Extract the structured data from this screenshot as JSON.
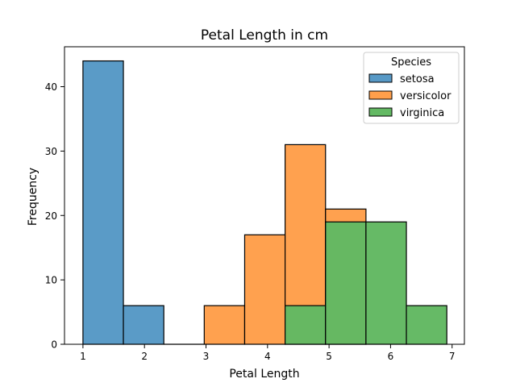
{
  "chart_data": {
    "type": "bar",
    "title": "Petal Length in cm",
    "xlabel": "Petal Length",
    "ylabel": "Frequency",
    "xlim": [
      0.7,
      7.2
    ],
    "ylim": [
      0,
      46.2
    ],
    "xticks": [
      1,
      2,
      3,
      4,
      5,
      6,
      7
    ],
    "yticks": [
      0,
      10,
      20,
      30,
      40
    ],
    "legend": {
      "title": "Species",
      "placement": "upper-right",
      "entries": [
        "setosa",
        "versicolor",
        "virginica"
      ]
    },
    "bin_edges": [
      1.0,
      1.6571,
      2.3143,
      2.9714,
      3.6286,
      4.2857,
      4.9429,
      5.6,
      6.2571,
      6.9143
    ],
    "series": [
      {
        "name": "setosa",
        "color": "#5799c6",
        "values": [
          44,
          6,
          0,
          0,
          0,
          0,
          0,
          0,
          0
        ]
      },
      {
        "name": "versicolor",
        "color": "#ff9f4b",
        "values": [
          0,
          0,
          0,
          6,
          17,
          31,
          21,
          0,
          0
        ]
      },
      {
        "name": "virginica",
        "color": "#63b963",
        "values": [
          0,
          0,
          0,
          0,
          0,
          6,
          19,
          19,
          6
        ]
      }
    ]
  }
}
